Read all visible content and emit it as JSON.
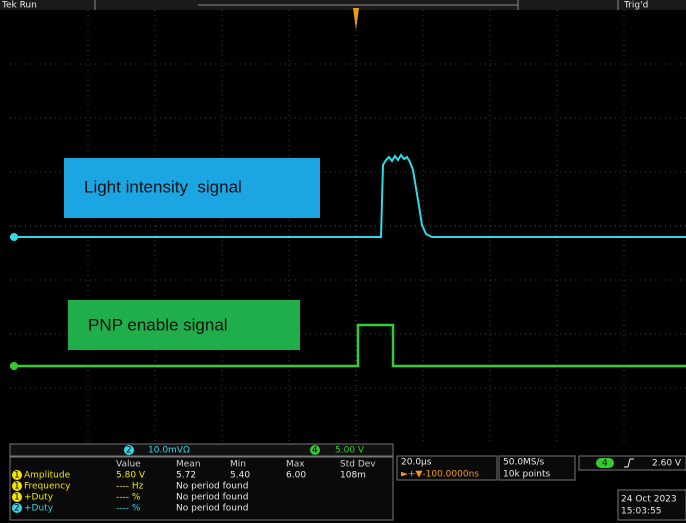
{
  "header": {
    "status": "Tek Run",
    "trigger_status": "Trig'd"
  },
  "annotations": [
    "Light intensity  signal",
    "PNP enable signal"
  ],
  "channel_scales": [
    {
      "channel": "2",
      "scale": "10.0mVΩ"
    },
    {
      "channel": "4",
      "scale": "5.00 V"
    }
  ],
  "measurements": {
    "headers": [
      "Value",
      "Mean",
      "Min",
      "Max",
      "Std Dev"
    ],
    "rows": [
      {
        "channel": "1",
        "name": "Amplitude",
        "cells": [
          "5.80 V",
          "5.72",
          "5.40",
          "6.00",
          "108m"
        ]
      },
      {
        "channel": "1",
        "name": "Frequency",
        "cells": [
          "---- Hz",
          "No period found"
        ]
      },
      {
        "channel": "1",
        "name": "+Duty",
        "cells": [
          "---- %",
          "No period found"
        ]
      },
      {
        "channel": "2",
        "name": "+Duty",
        "cells": [
          "---- %",
          "No period found"
        ]
      }
    ]
  },
  "timebase": {
    "scale": "20.0µs",
    "offset": "►+▼-100.0000ns"
  },
  "acquisition": {
    "sample_rate": "50.0MS/s",
    "record_length": "10k points"
  },
  "trigger": {
    "channel": "4",
    "level": "2.60 V"
  },
  "datetime": {
    "date": "24 Oct 2023",
    "time": "15:03:55"
  }
}
